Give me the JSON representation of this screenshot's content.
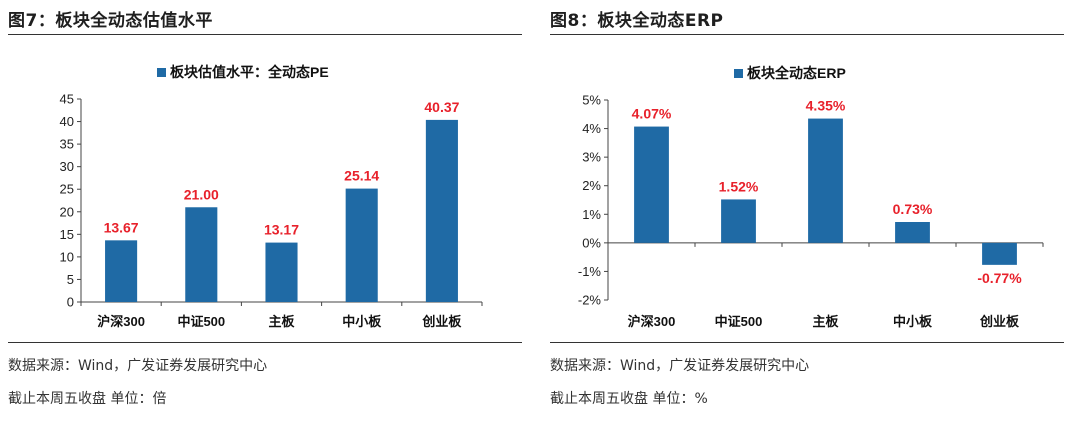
{
  "figures": [
    {
      "title": "图7：板块全动态估值水平",
      "source": "数据来源：Wind，广发证券发展研究中心",
      "note": "截止本周五收盘 单位：倍"
    },
    {
      "title": "图8：板块全动态ERP",
      "source": "数据来源：Wind，广发证券发展研究中心",
      "note": "截止本周五收盘 单位：%"
    }
  ],
  "colors": {
    "bar": "#1f6aa5",
    "label": "#e8212b",
    "axis": "#444444"
  },
  "chart_data": [
    {
      "type": "bar",
      "categories": [
        "沪深300",
        "中证500",
        "主板",
        "中小板",
        "创业板"
      ],
      "series": [
        {
          "name": "板块估值水平：全动态PE",
          "values": [
            13.67,
            21.0,
            13.17,
            25.14,
            40.37
          ]
        }
      ],
      "data_labels": [
        "13.67",
        "21.00",
        "13.17",
        "25.14",
        "40.37"
      ],
      "ylim": [
        0,
        45
      ],
      "yticks": [
        0,
        5,
        10,
        15,
        20,
        25,
        30,
        35,
        40,
        45
      ],
      "ytick_labels": [
        "0",
        "5",
        "10",
        "15",
        "20",
        "25",
        "30",
        "35",
        "40",
        "45"
      ],
      "legend": "top",
      "grid": false
    },
    {
      "type": "bar",
      "categories": [
        "沪深300",
        "中证500",
        "主板",
        "中小板",
        "创业板"
      ],
      "series": [
        {
          "name": "板块全动态ERP",
          "values": [
            4.07,
            1.52,
            4.35,
            0.73,
            -0.77
          ]
        }
      ],
      "data_labels": [
        "4.07%",
        "1.52%",
        "4.35%",
        "0.73%",
        "-0.77%"
      ],
      "ylim": [
        -2,
        5
      ],
      "yticks": [
        -2,
        -1,
        0,
        1,
        2,
        3,
        4,
        5
      ],
      "ytick_labels": [
        "-2%",
        "-1%",
        "0%",
        "1%",
        "2%",
        "3%",
        "4%",
        "5%"
      ],
      "legend": "top",
      "grid": false
    }
  ]
}
